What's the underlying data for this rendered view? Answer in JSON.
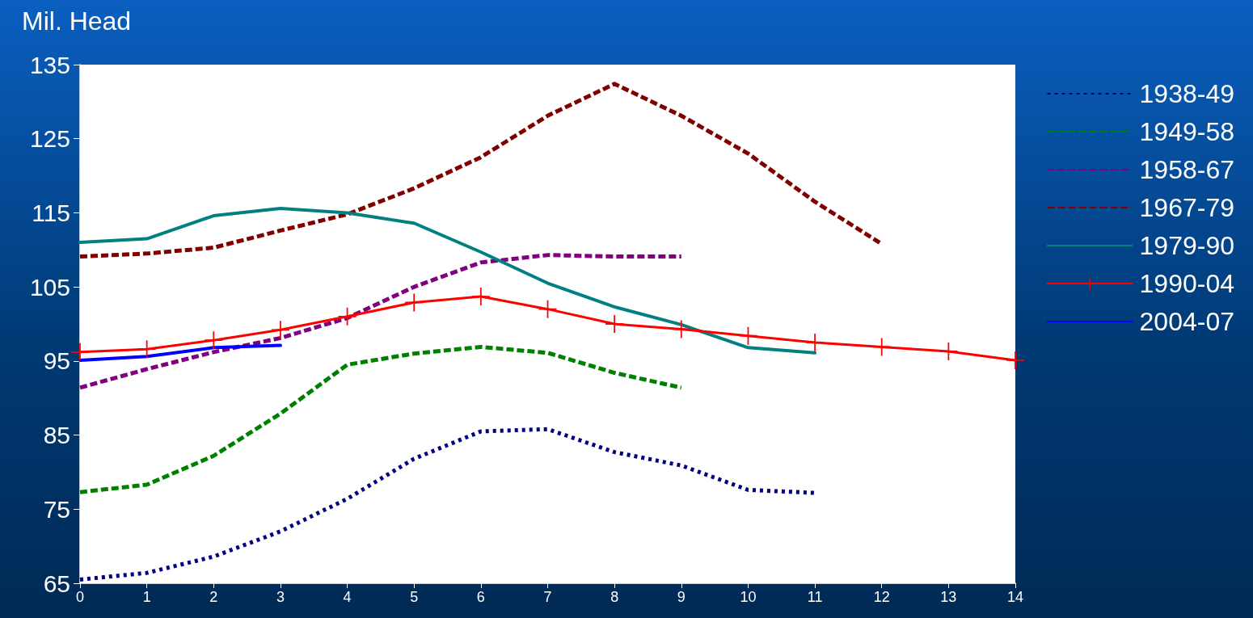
{
  "chart_data": {
    "type": "line",
    "ylabel": "Mil. Head",
    "x": [
      0,
      1,
      2,
      3,
      4,
      5,
      6,
      7,
      8,
      9,
      10,
      11,
      12,
      13,
      14
    ],
    "xlim": [
      0,
      14
    ],
    "xticks": [
      0,
      1,
      2,
      3,
      4,
      5,
      6,
      7,
      8,
      9,
      10,
      11,
      12,
      13,
      14
    ],
    "ylim": [
      65,
      135
    ],
    "yticks": [
      65,
      75,
      85,
      95,
      105,
      115,
      125,
      135
    ],
    "grid": false,
    "legend": "right",
    "marker": "none",
    "series": [
      {
        "name": "1938-49",
        "color": "#000080",
        "line_style": "dotted",
        "values": [
          65.5,
          66.4,
          68.6,
          72.0,
          76.4,
          81.8,
          85.5,
          85.8,
          82.7,
          80.9,
          77.6,
          77.2,
          null,
          null,
          null
        ]
      },
      {
        "name": "1949-58",
        "color": "#008000",
        "line_style": "dashed",
        "values": [
          77.3,
          78.3,
          82.2,
          87.9,
          94.5,
          96.0,
          96.9,
          96.1,
          93.4,
          91.4,
          null,
          null,
          null,
          null,
          null
        ]
      },
      {
        "name": "1958-67",
        "color": "#800080",
        "line_style": "dashed",
        "values": [
          91.4,
          93.9,
          96.2,
          98.1,
          100.8,
          105.0,
          108.3,
          109.3,
          109.1,
          109.1,
          null,
          null,
          null,
          null,
          null
        ]
      },
      {
        "name": "1967-79",
        "color": "#800000",
        "line_style": "dashed",
        "values": [
          109.1,
          109.5,
          110.3,
          112.6,
          114.8,
          118.3,
          122.5,
          128.1,
          132.4,
          128.1,
          123.0,
          116.5,
          110.8,
          null,
          null
        ]
      },
      {
        "name": "1979-90",
        "color": "#008080",
        "line_style": "solid",
        "values": [
          111.0,
          111.5,
          114.6,
          115.6,
          115.0,
          113.6,
          109.7,
          105.5,
          102.3,
          99.9,
          96.8,
          96.1,
          null,
          null,
          null
        ]
      },
      {
        "name": "1990-04",
        "color": "#ff0000",
        "line_style": "solid",
        "marker": "cross",
        "values": [
          96.2,
          96.6,
          97.8,
          99.2,
          101.0,
          102.9,
          103.7,
          102.0,
          100.0,
          99.3,
          98.4,
          97.5,
          96.9,
          96.3,
          95.1
        ]
      },
      {
        "name": "2004-07",
        "color": "#0000ff",
        "line_style": "solid",
        "values": [
          95.1,
          95.6,
          96.8,
          97.1,
          null,
          null,
          null,
          null,
          null,
          null,
          null,
          null,
          null,
          null,
          null
        ]
      }
    ]
  }
}
